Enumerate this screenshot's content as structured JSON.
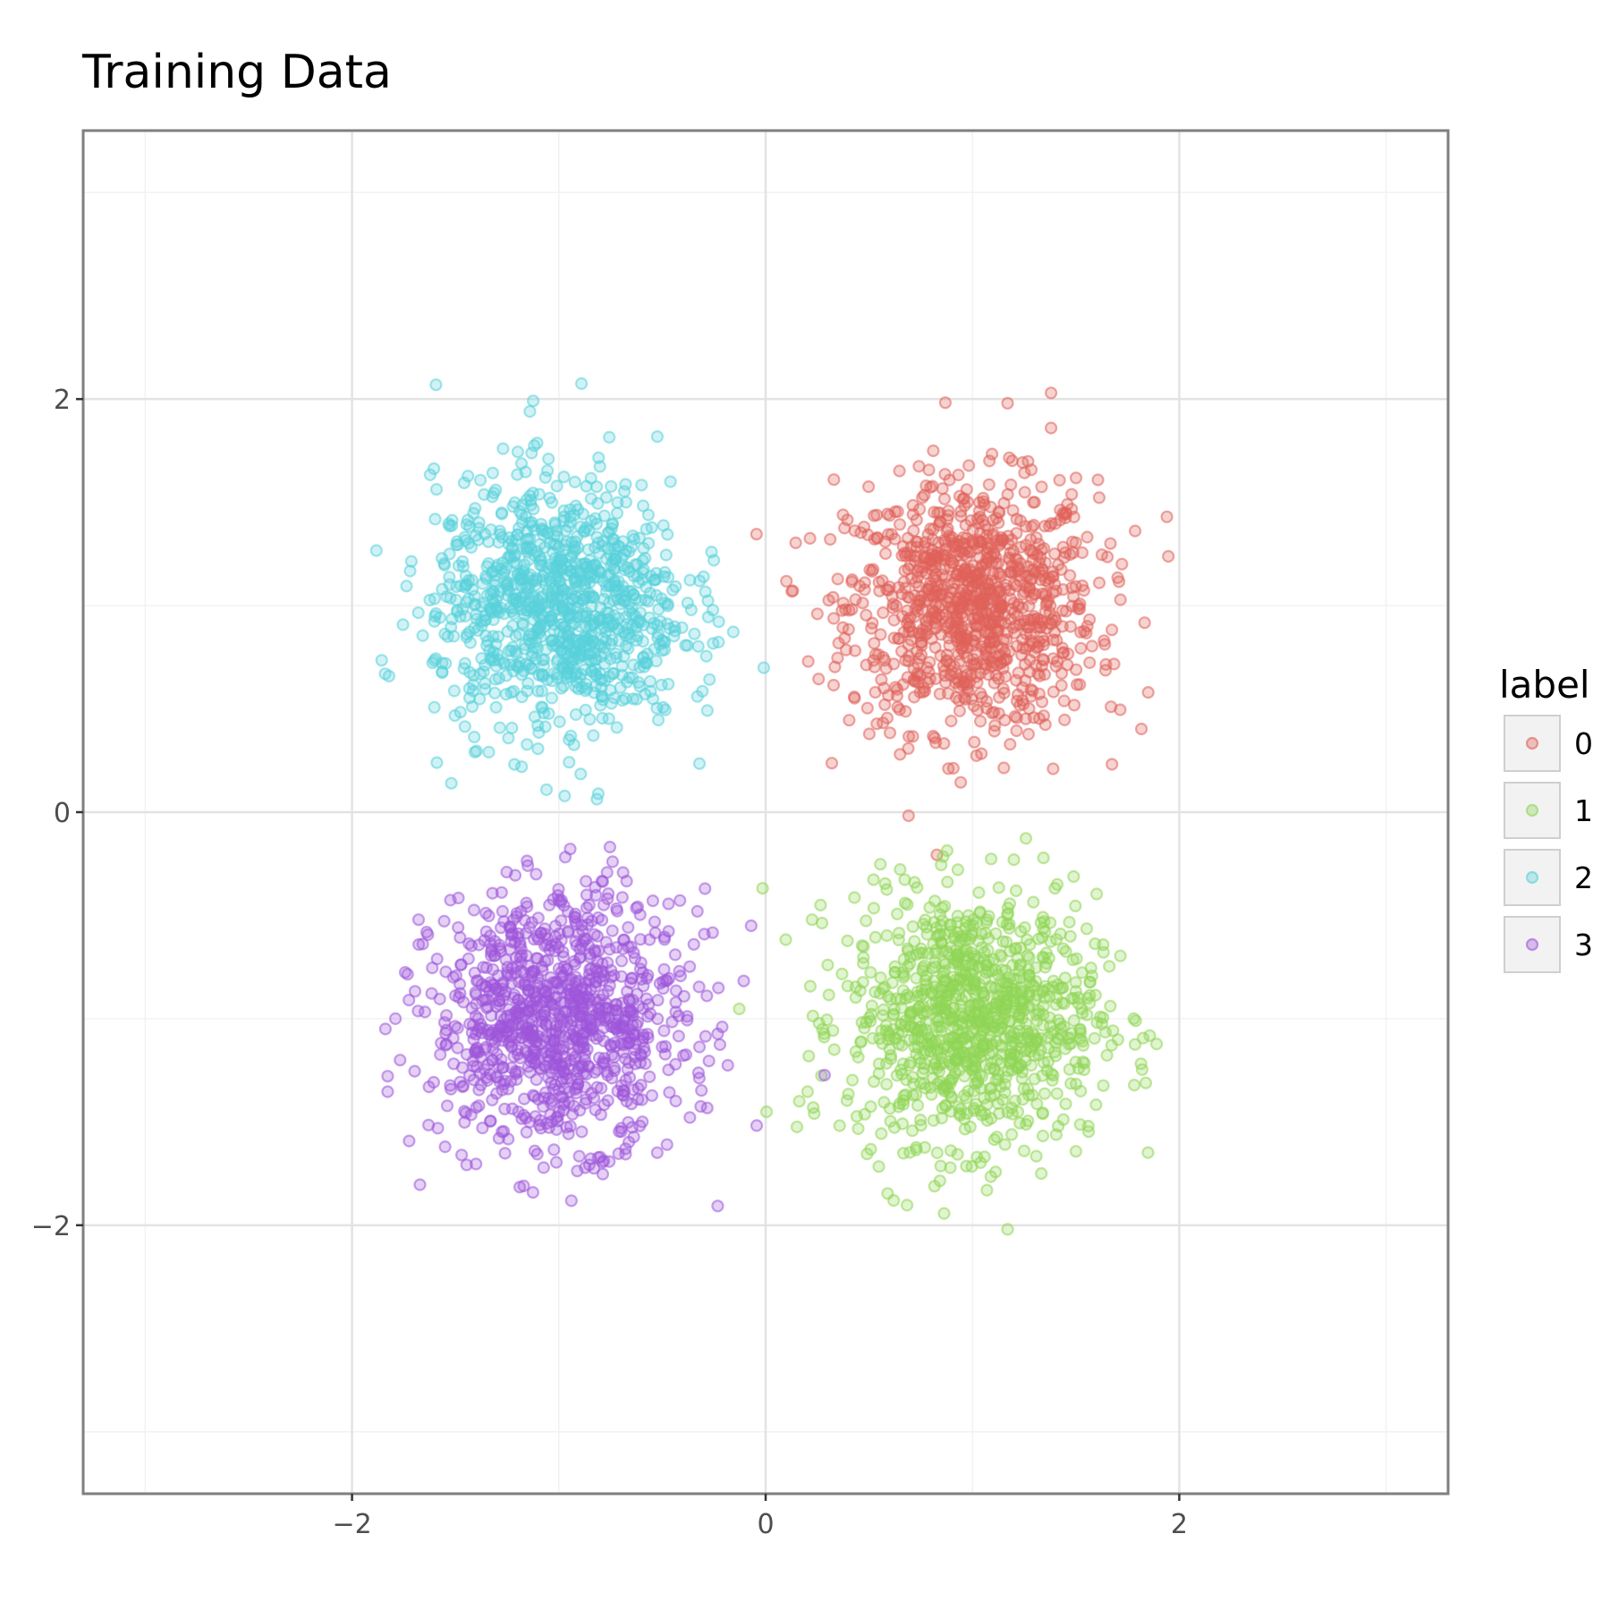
{
  "chart_data": {
    "type": "scatter",
    "title": "Training Data",
    "xlabel": "",
    "ylabel": "",
    "xlim": [
      -3.3,
      3.3
    ],
    "ylim": [
      -3.3,
      3.3
    ],
    "x_ticks": [
      -2,
      0,
      2
    ],
    "y_ticks": [
      -2,
      0,
      2
    ],
    "x_tick_labels": [
      "−2",
      "0",
      "2"
    ],
    "y_tick_labels": [
      "−2",
      "0",
      "2"
    ],
    "grid": true,
    "legend": {
      "title": "label",
      "placement": "right"
    },
    "series": [
      {
        "name": "0",
        "color": "#e06259",
        "center": [
          1.0,
          1.0
        ],
        "spread": 0.3,
        "count": 1000,
        "points": [
          [
            1.38,
            2.03
          ],
          [
            1.17,
            1.98
          ],
          [
            1.38,
            1.86
          ],
          [
            1.94,
            1.43
          ],
          [
            0.33,
            1.61
          ],
          [
            1.39,
            0.21
          ],
          [
            0.65,
            0.28
          ],
          [
            1.85,
            0.58
          ],
          [
            0.25,
            0.96
          ],
          [
            1.67,
            0.51
          ]
        ]
      },
      {
        "name": "1",
        "color": "#8fd656",
        "center": [
          1.0,
          -1.0
        ],
        "spread": 0.3,
        "count": 1000,
        "points": [
          [
            1.17,
            -2.02
          ],
          [
            1.07,
            -1.83
          ],
          [
            1.2,
            -0.23
          ],
          [
            0.23,
            -1.43
          ],
          [
            1.78,
            -1.0
          ],
          [
            1.56,
            -1.52
          ],
          [
            0.3,
            -0.74
          ],
          [
            1.25,
            -1.64
          ],
          [
            0.72,
            -0.34
          ],
          [
            1.41,
            -0.35
          ]
        ]
      },
      {
        "name": "2",
        "color": "#58d1db",
        "center": [
          -1.0,
          1.0
        ],
        "spread": 0.3,
        "count": 1000,
        "points": [
          [
            -1.14,
            1.94
          ],
          [
            -1.84,
            0.67
          ],
          [
            -1.52,
            0.14
          ],
          [
            -0.3,
            1.14
          ],
          [
            -1.05,
            1.71
          ],
          [
            -1.27,
            1.76
          ],
          [
            -0.46,
            1.6
          ],
          [
            -1.59,
            0.24
          ],
          [
            -0.33,
            0.56
          ],
          [
            -1.18,
            0.22
          ]
        ]
      },
      {
        "name": "3",
        "color": "#9f55db",
        "center": [
          -1.0,
          -1.0
        ],
        "spread": 0.3,
        "count": 1000,
        "points": [
          [
            -1.17,
            -1.81
          ],
          [
            -0.07,
            -0.55
          ],
          [
            -0.74,
            -0.24
          ],
          [
            -1.47,
            -1.66
          ],
          [
            -1.79,
            -1.0
          ],
          [
            -0.21,
            -1.04
          ],
          [
            -0.33,
            -0.48
          ],
          [
            -1.55,
            -1.62
          ],
          [
            -0.8,
            -1.67
          ],
          [
            -1.11,
            -0.3
          ]
        ]
      }
    ]
  }
}
